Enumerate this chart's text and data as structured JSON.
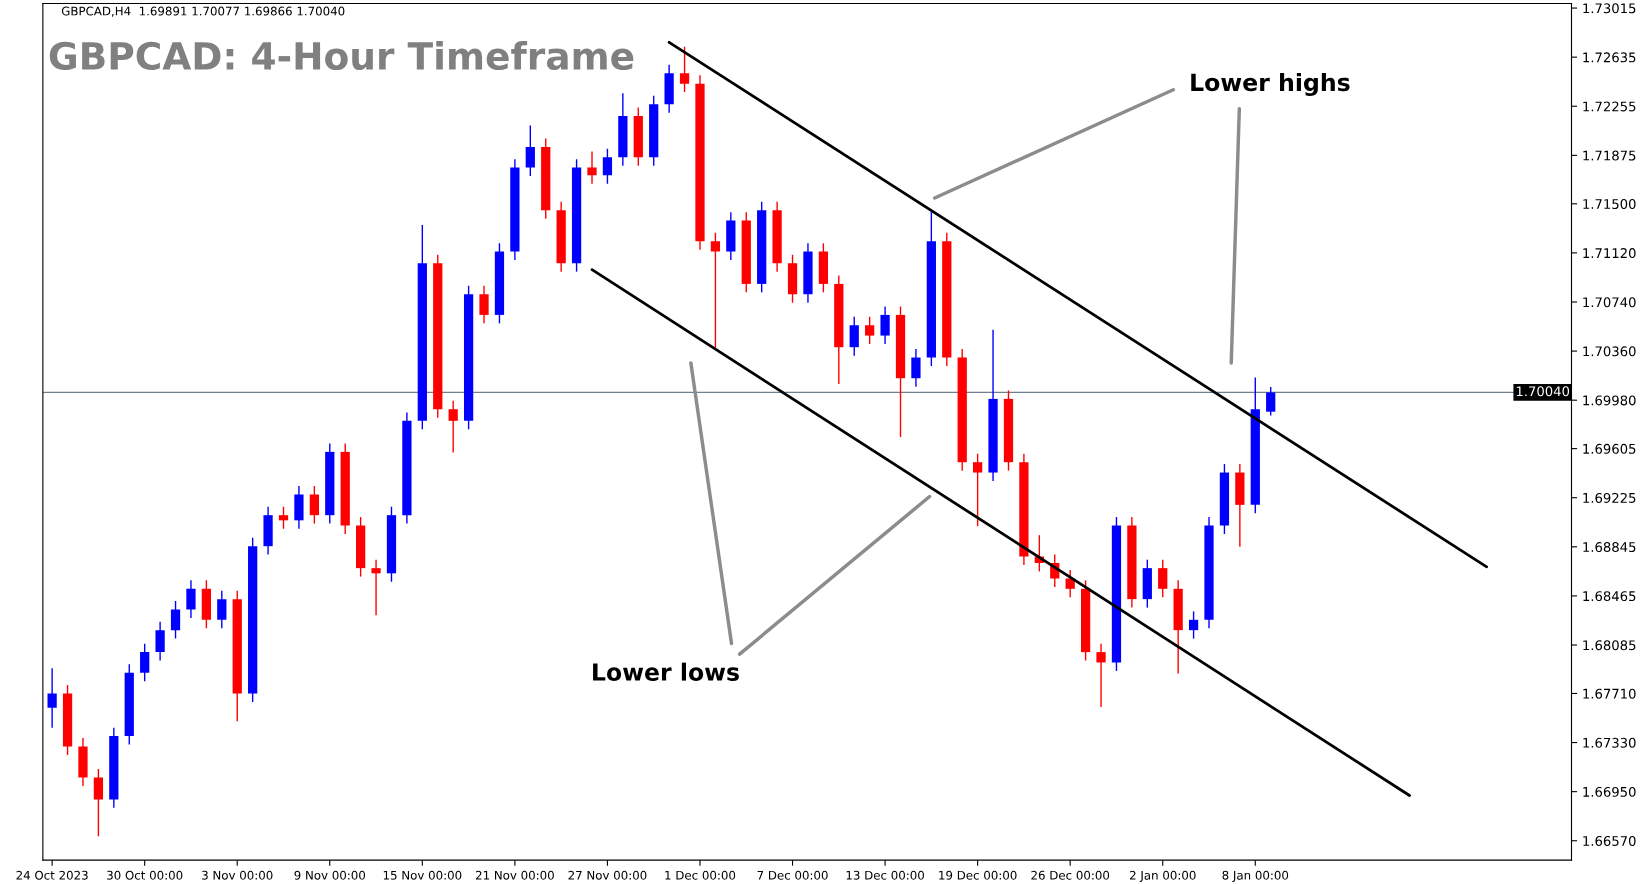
{
  "chart_data": {
    "type": "candlestick",
    "title": "GBPCAD: 4-Hour Timeframe",
    "annotations": [
      "GBPCAD,H4  1.69891 1.70077 1.69866 1.70040",
      "Lower highs",
      "Lower lows"
    ],
    "categories": [
      "24 Oct 2023",
      null,
      null,
      null,
      null,
      null,
      "30 Oct 00:00",
      null,
      null,
      null,
      null,
      null,
      "3 Nov 00:00",
      null,
      null,
      null,
      null,
      null,
      "9 Nov 00:00",
      null,
      null,
      null,
      null,
      null,
      "15 Nov 00:00",
      null,
      null,
      null,
      null,
      null,
      "21 Nov 00:00",
      null,
      null,
      null,
      null,
      null,
      "27 Nov 00:00",
      null,
      null,
      null,
      null,
      null,
      "1 Dec 00:00",
      null,
      null,
      null,
      null,
      null,
      "7 Dec 00:00",
      null,
      null,
      null,
      null,
      null,
      "13 Dec 00:00",
      null,
      null,
      null,
      null,
      null,
      "19 Dec 00:00",
      null,
      null,
      null,
      null,
      null,
      "26 Dec 00:00",
      null,
      null,
      null,
      null,
      null,
      "2 Jan 00:00",
      null,
      null,
      null,
      null,
      null,
      "8 Jan 00:00",
      null,
      null,
      null,
      null,
      null,
      null,
      null,
      null,
      null,
      null,
      null,
      null,
      null,
      null,
      null,
      null,
      null,
      null,
      null,
      null
    ],
    "ylim": [
      1.6642,
      1.7305
    ],
    "yticks": [
      {
        "value": 1.6657,
        "label": "1.66570"
      },
      {
        "value": 1.6695,
        "label": "1.66950"
      },
      {
        "value": 1.6733,
        "label": "1.67330"
      },
      {
        "value": 1.6771,
        "label": "1.67710"
      },
      {
        "value": 1.68085,
        "label": "1.68085"
      },
      {
        "value": 1.68465,
        "label": "1.68465"
      },
      {
        "value": 1.68845,
        "label": "1.68845"
      },
      {
        "value": 1.69225,
        "label": "1.69225"
      },
      {
        "value": 1.69605,
        "label": "1.69605"
      },
      {
        "value": 1.6998,
        "label": "1.69980"
      },
      {
        "value": 1.7036,
        "label": "1.70360"
      },
      {
        "value": 1.7074,
        "label": "1.70740"
      },
      {
        "value": 1.7112,
        "label": "1.71120"
      },
      {
        "value": 1.715,
        "label": "1.71500"
      },
      {
        "value": 1.71875,
        "label": "1.71875"
      },
      {
        "value": 1.72255,
        "label": "1.72255"
      },
      {
        "value": 1.72635,
        "label": "1.72635"
      },
      {
        "value": 1.73015,
        "label": "1.73015"
      }
    ],
    "ref_lines": [
      {
        "axis": "y",
        "value": 1.7004,
        "label": "1.70040",
        "color": "#708090"
      }
    ],
    "ohlc": [
      [
        1.676,
        1.679,
        1.6745,
        1.6771
      ],
      [
        1.6771,
        1.6777,
        1.6724,
        1.673
      ],
      [
        1.673,
        1.6736,
        1.67,
        1.6706
      ],
      [
        1.6706,
        1.6712,
        1.6661,
        1.6689
      ],
      [
        1.6689,
        1.6744,
        1.6683,
        1.6738
      ],
      [
        1.6738,
        1.6793,
        1.6732,
        1.6787
      ],
      [
        1.6787,
        1.6809,
        1.6781,
        1.6803
      ],
      [
        1.6803,
        1.6826,
        1.6797,
        1.682
      ],
      [
        1.682,
        1.6842,
        1.6814,
        1.6836
      ],
      [
        1.6836,
        1.6858,
        1.683,
        1.6852
      ],
      [
        1.6852,
        1.6858,
        1.6822,
        1.6828
      ],
      [
        1.6828,
        1.685,
        1.6822,
        1.6844
      ],
      [
        1.6844,
        1.685,
        1.675,
        1.6771
      ],
      [
        1.6771,
        1.6891,
        1.6765,
        1.6885
      ],
      [
        1.6885,
        1.6915,
        1.6879,
        1.6909
      ],
      [
        1.6909,
        1.6915,
        1.6899,
        1.6905
      ],
      [
        1.6905,
        1.6931,
        1.6899,
        1.6925
      ],
      [
        1.6925,
        1.6931,
        1.6903,
        1.6909
      ],
      [
        1.6909,
        1.6964,
        1.6903,
        1.6958
      ],
      [
        1.6958,
        1.6964,
        1.6895,
        1.6901
      ],
      [
        1.6901,
        1.6907,
        1.6862,
        1.6868
      ],
      [
        1.6868,
        1.6874,
        1.6832,
        1.6864
      ],
      [
        1.6864,
        1.6915,
        1.6858,
        1.6909
      ],
      [
        1.6909,
        1.6988,
        1.6903,
        1.6982
      ],
      [
        1.6982,
        1.7133,
        1.6976,
        1.7104
      ],
      [
        1.7104,
        1.711,
        1.6985,
        1.6991
      ],
      [
        1.6991,
        1.6997,
        1.6958,
        1.6982
      ],
      [
        1.6982,
        1.7086,
        1.6976,
        1.708
      ],
      [
        1.708,
        1.7086,
        1.7058,
        1.7064
      ],
      [
        1.7064,
        1.7119,
        1.7058,
        1.7113
      ],
      [
        1.7113,
        1.7184,
        1.7107,
        1.7178
      ],
      [
        1.7178,
        1.721,
        1.7172,
        1.7194
      ],
      [
        1.7194,
        1.72,
        1.7139,
        1.7145
      ],
      [
        1.7145,
        1.7151,
        1.7098,
        1.7104
      ],
      [
        1.7104,
        1.7184,
        1.7098,
        1.7178
      ],
      [
        1.7178,
        1.719,
        1.7166,
        1.7172
      ],
      [
        1.7172,
        1.7192,
        1.7166,
        1.7186
      ],
      [
        1.7186,
        1.7235,
        1.718,
        1.7218
      ],
      [
        1.7218,
        1.7224,
        1.718,
        1.7186
      ],
      [
        1.7186,
        1.7233,
        1.718,
        1.7227
      ],
      [
        1.7227,
        1.7257,
        1.7221,
        1.7251
      ],
      [
        1.7251,
        1.7271,
        1.7237,
        1.7243
      ],
      [
        1.7243,
        1.7249,
        1.7115,
        1.7121
      ],
      [
        1.7121,
        1.7127,
        1.7039,
        1.7113
      ],
      [
        1.7113,
        1.7143,
        1.7107,
        1.7137
      ],
      [
        1.7137,
        1.7143,
        1.7082,
        1.7088
      ],
      [
        1.7088,
        1.7151,
        1.7082,
        1.7145
      ],
      [
        1.7145,
        1.7151,
        1.7098,
        1.7104
      ],
      [
        1.7104,
        1.711,
        1.7074,
        1.708
      ],
      [
        1.708,
        1.7119,
        1.7074,
        1.7113
      ],
      [
        1.7113,
        1.7119,
        1.7082,
        1.7088
      ],
      [
        1.7088,
        1.7094,
        1.7011,
        1.7039
      ],
      [
        1.7039,
        1.7062,
        1.7033,
        1.7056
      ],
      [
        1.7056,
        1.7062,
        1.7042,
        1.7048
      ],
      [
        1.7048,
        1.707,
        1.7042,
        1.7064
      ],
      [
        1.7064,
        1.707,
        1.697,
        1.7015
      ],
      [
        1.7015,
        1.7037,
        1.7009,
        1.7031
      ],
      [
        1.7031,
        1.7145,
        1.7025,
        1.7121
      ],
      [
        1.7121,
        1.7127,
        1.7025,
        1.7031
      ],
      [
        1.7031,
        1.7037,
        1.6944,
        1.695
      ],
      [
        1.695,
        1.6956,
        1.6901,
        1.6942
      ],
      [
        1.6942,
        1.7052,
        1.6936,
        1.6999
      ],
      [
        1.6999,
        1.7005,
        1.6944,
        1.695
      ],
      [
        1.695,
        1.6956,
        1.6871,
        1.6877
      ],
      [
        1.6877,
        1.6893,
        1.6866,
        1.6872
      ],
      [
        1.6872,
        1.6878,
        1.6854,
        1.686
      ],
      [
        1.686,
        1.6866,
        1.6846,
        1.6852
      ],
      [
        1.6852,
        1.6858,
        1.6797,
        1.6803
      ],
      [
        1.6803,
        1.6809,
        1.6761,
        1.6795
      ],
      [
        1.6795,
        1.6907,
        1.6789,
        1.6901
      ],
      [
        1.6901,
        1.6907,
        1.6838,
        1.6844
      ],
      [
        1.6844,
        1.6874,
        1.6838,
        1.6868
      ],
      [
        1.6868,
        1.6874,
        1.6846,
        1.6852
      ],
      [
        1.6852,
        1.6858,
        1.6787,
        1.682
      ],
      [
        1.682,
        1.6834,
        1.6814,
        1.6828
      ],
      [
        1.6828,
        1.6907,
        1.6822,
        1.6901
      ],
      [
        1.6901,
        1.6948,
        1.6895,
        1.6942
      ],
      [
        1.6942,
        1.6948,
        1.6885,
        1.6917
      ],
      [
        1.6917,
        1.7015,
        1.6911,
        1.6991
      ],
      [
        1.69891,
        1.70077,
        1.69866,
        1.7004
      ],
      null,
      null,
      null,
      null,
      null,
      null,
      null,
      null,
      null,
      null,
      null,
      null,
      null,
      null,
      null,
      null,
      null,
      null,
      null
    ],
    "colors": [
      "#0000ff",
      "#ff0000",
      "#ff0000",
      "#ff0000",
      "#0000ff",
      "#0000ff",
      "#0000ff",
      "#0000ff",
      "#0000ff",
      "#0000ff",
      "#ff0000",
      "#0000ff",
      "#ff0000",
      "#0000ff",
      "#0000ff",
      "#ff0000",
      "#0000ff",
      "#ff0000",
      "#0000ff",
      "#ff0000",
      "#ff0000",
      "#ff0000",
      "#0000ff",
      "#0000ff",
      "#0000ff",
      "#ff0000",
      "#ff0000",
      "#0000ff",
      "#ff0000",
      "#0000ff",
      "#0000ff",
      "#0000ff",
      "#ff0000",
      "#ff0000",
      "#0000ff",
      "#ff0000",
      "#0000ff",
      "#0000ff",
      "#ff0000",
      "#0000ff",
      "#0000ff",
      "#ff0000",
      "#ff0000",
      "#ff0000",
      "#0000ff",
      "#ff0000",
      "#0000ff",
      "#ff0000",
      "#ff0000",
      "#0000ff",
      "#ff0000",
      "#ff0000",
      "#0000ff",
      "#ff0000",
      "#0000ff",
      "#ff0000",
      "#0000ff",
      "#0000ff",
      "#ff0000",
      "#ff0000",
      "#ff0000",
      "#0000ff",
      "#ff0000",
      "#ff0000",
      "#ff0000",
      "#ff0000",
      "#ff0000",
      "#ff0000",
      "#ff0000",
      "#0000ff",
      "#ff0000",
      "#0000ff",
      "#ff0000",
      "#ff0000",
      "#0000ff",
      "#0000ff",
      "#0000ff",
      "#ff0000",
      "#0000ff",
      "#0000ff",
      null,
      null,
      null,
      null,
      null,
      null,
      null,
      null,
      null,
      null,
      null,
      null,
      null,
      null,
      null,
      null,
      null,
      null,
      null
    ],
    "series": [
      {
        "type": "line",
        "color": "#000000",
        "values": [
          null,
          null,
          null,
          null,
          null,
          null,
          null,
          null,
          null,
          null,
          null,
          null,
          null,
          null,
          null,
          null,
          null,
          null,
          null,
          null,
          null,
          null,
          null,
          null,
          null,
          null,
          null,
          null,
          null,
          null,
          null,
          null,
          null,
          null,
          null,
          null,
          null,
          null,
          null,
          null,
          1.7275,
          null,
          null,
          null,
          null,
          null,
          null,
          null,
          null,
          null,
          null,
          null,
          null,
          null,
          null,
          null,
          null,
          null,
          null,
          null,
          null,
          null,
          null,
          null,
          null,
          null,
          null,
          null,
          null,
          null,
          null,
          null,
          null,
          null,
          null,
          null,
          null,
          null,
          null,
          null,
          null,
          null,
          null,
          null,
          null,
          null,
          null,
          null,
          null,
          null,
          null,
          null,
          null,
          1.6869,
          null,
          null,
          null,
          null,
          null
        ]
      },
      {
        "type": "line",
        "color": "#000000",
        "values": [
          null,
          null,
          null,
          null,
          null,
          null,
          null,
          null,
          null,
          null,
          null,
          null,
          null,
          null,
          null,
          null,
          null,
          null,
          null,
          null,
          null,
          null,
          null,
          null,
          null,
          null,
          null,
          null,
          null,
          null,
          null,
          null,
          null,
          null,
          null,
          1.7099,
          null,
          null,
          null,
          null,
          null,
          null,
          null,
          null,
          null,
          null,
          null,
          null,
          null,
          null,
          null,
          null,
          null,
          null,
          null,
          null,
          null,
          null,
          null,
          null,
          null,
          null,
          null,
          null,
          null,
          null,
          null,
          null,
          null,
          null,
          null,
          null,
          null,
          null,
          null,
          null,
          null,
          null,
          null,
          null,
          null,
          null,
          null,
          null,
          null,
          null,
          null,
          null,
          1.6692,
          null,
          null,
          null,
          null,
          null,
          null,
          null,
          null,
          null,
          null
        ]
      }
    ]
  }
}
